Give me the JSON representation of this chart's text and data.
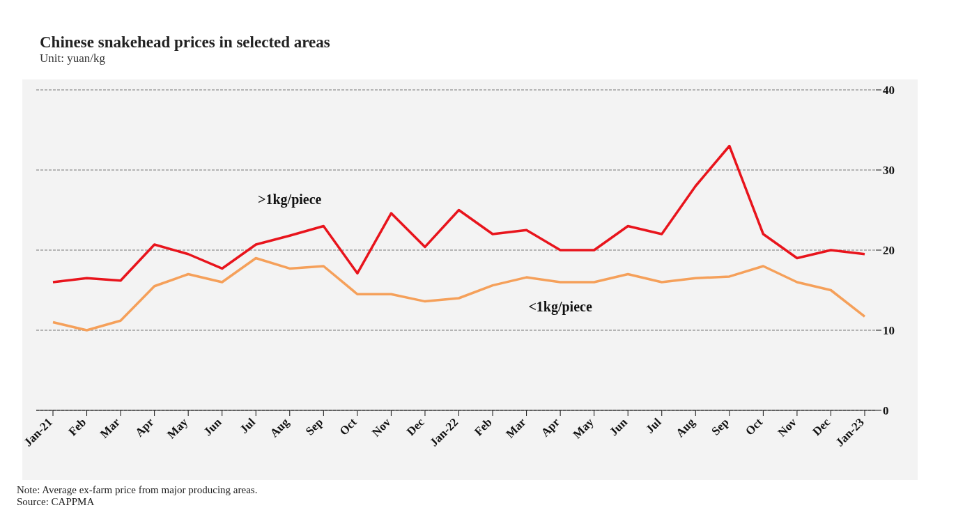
{
  "chart_data": {
    "type": "line",
    "title": "Chinese snakehead prices in selected areas",
    "subtitle": "Unit: yuan/kg",
    "categories": [
      "Jan-21",
      "Feb",
      "Mar",
      "Apr",
      "May",
      "Jun",
      "Jul",
      "Aug",
      "Sep",
      "Oct",
      "Nov",
      "Dec",
      "Jan-22",
      "Feb",
      "Mar",
      "Apr",
      "May",
      "Jun",
      "Jul",
      "Aug",
      "Sep",
      "Oct",
      "Nov",
      "Dec",
      "Jan-23"
    ],
    "series": [
      {
        "name": ">1kg/piece",
        "color": "#e8141c",
        "values": [
          16,
          16.5,
          16.2,
          20.7,
          19.5,
          17.7,
          20.7,
          21.8,
          23,
          17.1,
          24.6,
          20.4,
          25,
          22,
          22.5,
          20,
          20,
          23,
          22,
          28,
          33,
          22,
          19,
          20,
          19.5
        ]
      },
      {
        "name": "<1kg/piece",
        "color": "#f5a05a",
        "values": [
          11,
          10,
          11.2,
          15.5,
          17,
          16,
          19,
          17.7,
          18,
          14.5,
          14.5,
          13.6,
          14,
          15.6,
          16.6,
          16,
          16,
          17,
          16,
          16.5,
          16.7,
          18,
          16,
          15,
          11.7
        ]
      }
    ],
    "ylim": [
      0,
      40
    ],
    "yticks": [
      0,
      10,
      20,
      30,
      40
    ],
    "grid": "y",
    "marker": "none",
    "line_style": "solid",
    "annotations": [
      "Note: Average ex-farm price from major producing areas.",
      "Source: CAPPMA"
    ]
  }
}
